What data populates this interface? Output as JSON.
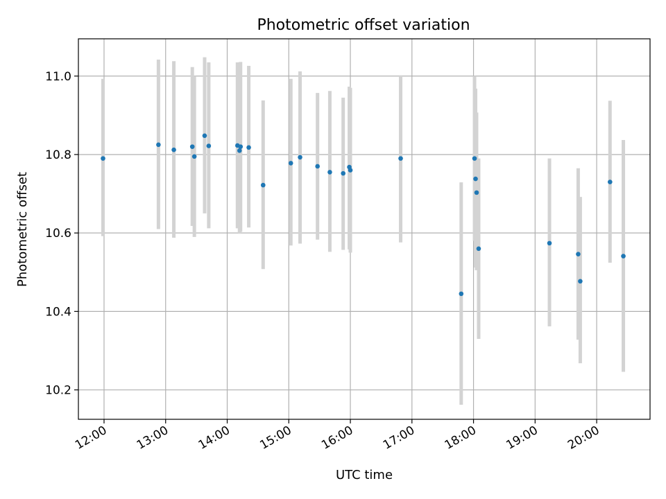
{
  "chart_data": {
    "type": "scatter",
    "title": "Photometric offset variation",
    "xlabel": "UTC time",
    "ylabel": "Photometric offset",
    "grid": true,
    "xlim": [
      "11:35",
      "20:52"
    ],
    "ylim": [
      10.125,
      11.095
    ],
    "xticks": [
      "12:00",
      "13:00",
      "14:00",
      "15:00",
      "16:00",
      "17:00",
      "18:00",
      "19:00",
      "20:00"
    ],
    "yticks": [
      "10.2",
      "10.4",
      "10.6",
      "10.8",
      "11.0"
    ],
    "error_bar_color": "#d3d3d3",
    "point_color": "#1f77b4",
    "points": [
      {
        "t": "11:59",
        "y": 10.79,
        "lo": 10.592,
        "hi": 10.993
      },
      {
        "t": "12:53",
        "y": 10.825,
        "lo": 10.61,
        "hi": 11.042
      },
      {
        "t": "13:08",
        "y": 10.812,
        "lo": 10.588,
        "hi": 11.038
      },
      {
        "t": "13:26",
        "y": 10.82,
        "lo": 10.618,
        "hi": 11.023
      },
      {
        "t": "13:28",
        "y": 10.795,
        "lo": 10.59,
        "hi": 11.0
      },
      {
        "t": "13:38",
        "y": 10.848,
        "lo": 10.65,
        "hi": 11.048
      },
      {
        "t": "13:42",
        "y": 10.822,
        "lo": 10.612,
        "hi": 11.035
      },
      {
        "t": "14:10",
        "y": 10.823,
        "lo": 10.612,
        "hi": 11.035
      },
      {
        "t": "14:12",
        "y": 10.81,
        "lo": 10.598,
        "hi": 11.02
      },
      {
        "t": "14:13",
        "y": 10.82,
        "lo": 10.603,
        "hi": 11.036
      },
      {
        "t": "14:21",
        "y": 10.818,
        "lo": 10.614,
        "hi": 11.026
      },
      {
        "t": "14:35",
        "y": 10.722,
        "lo": 10.508,
        "hi": 10.938
      },
      {
        "t": "15:02",
        "y": 10.778,
        "lo": 10.568,
        "hi": 10.993
      },
      {
        "t": "15:11",
        "y": 10.793,
        "lo": 10.573,
        "hi": 11.012
      },
      {
        "t": "15:28",
        "y": 10.77,
        "lo": 10.583,
        "hi": 10.957
      },
      {
        "t": "15:40",
        "y": 10.755,
        "lo": 10.552,
        "hi": 10.962
      },
      {
        "t": "15:53",
        "y": 10.752,
        "lo": 10.557,
        "hi": 10.945
      },
      {
        "t": "15:59",
        "y": 10.768,
        "lo": 10.558,
        "hi": 10.973
      },
      {
        "t": "16:00",
        "y": 10.76,
        "lo": 10.55,
        "hi": 10.97
      },
      {
        "t": "16:49",
        "y": 10.79,
        "lo": 10.576,
        "hi": 11.002
      },
      {
        "t": "17:48",
        "y": 10.445,
        "lo": 10.162,
        "hi": 10.729
      },
      {
        "t": "18:01",
        "y": 10.79,
        "lo": 10.58,
        "hi": 11.0
      },
      {
        "t": "18:02",
        "y": 10.738,
        "lo": 10.512,
        "hi": 10.968
      },
      {
        "t": "18:03",
        "y": 10.703,
        "lo": 10.505,
        "hi": 10.907
      },
      {
        "t": "18:05",
        "y": 10.56,
        "lo": 10.33,
        "hi": 10.79
      },
      {
        "t": "19:14",
        "y": 10.574,
        "lo": 10.362,
        "hi": 10.79
      },
      {
        "t": "19:42",
        "y": 10.546,
        "lo": 10.328,
        "hi": 10.765
      },
      {
        "t": "19:44",
        "y": 10.477,
        "lo": 10.268,
        "hi": 10.692
      },
      {
        "t": "20:13",
        "y": 10.73,
        "lo": 10.524,
        "hi": 10.937
      },
      {
        "t": "20:26",
        "y": 10.541,
        "lo": 10.246,
        "hi": 10.837
      }
    ]
  }
}
